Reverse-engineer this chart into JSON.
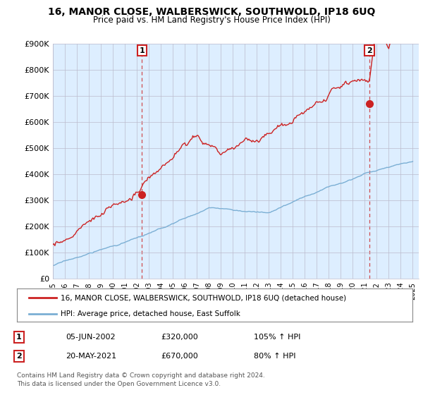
{
  "title": "16, MANOR CLOSE, WALBERSWICK, SOUTHWOLD, IP18 6UQ",
  "subtitle": "Price paid vs. HM Land Registry's House Price Index (HPI)",
  "ylim": [
    0,
    900000
  ],
  "yticks": [
    0,
    100000,
    200000,
    300000,
    400000,
    500000,
    600000,
    700000,
    800000,
    900000
  ],
  "ytick_labels": [
    "£0",
    "£100K",
    "£200K",
    "£300K",
    "£400K",
    "£500K",
    "£600K",
    "£700K",
    "£800K",
    "£900K"
  ],
  "hpi_color": "#7bafd4",
  "price_color": "#cc2222",
  "plot_bg": "#ddeeff",
  "sale1": {
    "date_num": 2002.43,
    "price": 320000,
    "label": "1"
  },
  "sale2": {
    "date_num": 2021.38,
    "price": 670000,
    "label": "2"
  },
  "legend_line1": "16, MANOR CLOSE, WALBERSWICK, SOUTHWOLD, IP18 6UQ (detached house)",
  "legend_line2": "HPI: Average price, detached house, East Suffolk",
  "footnote": "Contains HM Land Registry data © Crown copyright and database right 2024.\nThis data is licensed under the Open Government Licence v3.0.",
  "table_rows": [
    {
      "num": "1",
      "date": "05-JUN-2002",
      "price": "£320,000",
      "pct": "105% ↑ HPI"
    },
    {
      "num": "2",
      "date": "20-MAY-2021",
      "price": "£670,000",
      "pct": "80% ↑ HPI"
    }
  ],
  "background_color": "#ffffff",
  "grid_color": "#bbbbcc"
}
